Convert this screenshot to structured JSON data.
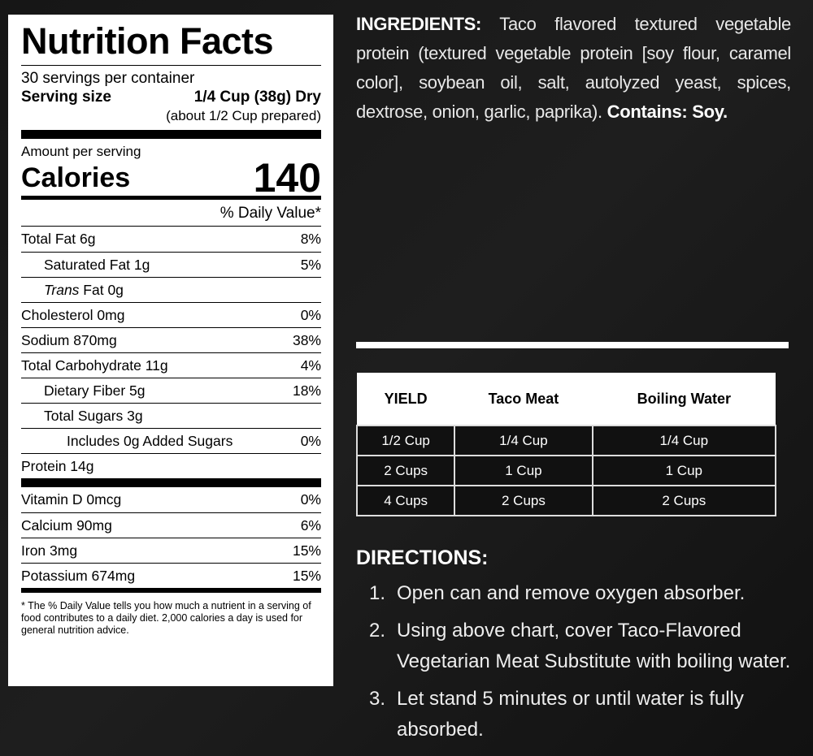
{
  "label": {
    "title": "Nutrition Facts",
    "servings": "30 servings per container",
    "serving_size_label": "Serving size",
    "serving_size_value": "1/4 Cup (38g) Dry",
    "prepared": "(about 1/2 Cup prepared)",
    "amount_per_serving": "Amount per serving",
    "calories_label": "Calories",
    "calories": "140",
    "dv_header": "% Daily Value*",
    "nutrients": [
      {
        "name": "Total Fat 6g",
        "dv": "8%"
      },
      {
        "name": "Saturated Fat 1g",
        "dv": "5%"
      },
      {
        "name": "Trans Fat 0g",
        "dv": ""
      },
      {
        "name": "Cholesterol 0mg",
        "dv": "0%"
      },
      {
        "name": "Sodium 870mg",
        "dv": "38%"
      },
      {
        "name": "Total Carbohydrate 11g",
        "dv": "4%"
      },
      {
        "name": "Dietary Fiber 5g",
        "dv": "18%"
      },
      {
        "name": "Total Sugars 3g",
        "dv": ""
      },
      {
        "name": "Includes 0g Added Sugars",
        "dv": "0%"
      },
      {
        "name": "Protein 14g",
        "dv": ""
      }
    ],
    "vitamins": [
      {
        "name": "Vitamin D 0mcg",
        "dv": "0%"
      },
      {
        "name": "Calcium 90mg",
        "dv": "6%"
      },
      {
        "name": "Iron 3mg",
        "dv": "15%"
      },
      {
        "name": "Potassium 674mg",
        "dv": "15%"
      }
    ],
    "footnote": "* The % Daily Value tells you how much a nutrient in a serving of food contributes to a daily diet. 2,000 calories a day is used for general nutrition advice."
  },
  "ingredients": {
    "label": "INGREDIENTS:",
    "text": "Taco flavored textured vegetable protein (textured vegetable protein [soy flour, caramel color], soybean oil, salt, autolyzed yeast, spices, dextrose, onion, garlic, paprika).",
    "contains": "Contains: Soy."
  },
  "yield_table": {
    "headers": [
      "YIELD",
      "Taco Meat",
      "Boiling Water"
    ],
    "rows": [
      [
        "1/2 Cup",
        "1/4 Cup",
        "1/4 Cup"
      ],
      [
        "2 Cups",
        "1 Cup",
        "1 Cup"
      ],
      [
        "4 Cups",
        "2 Cups",
        "2 Cups"
      ]
    ]
  },
  "directions": {
    "title": "DIRECTIONS:",
    "steps": [
      {
        "n": "1.",
        "text": "Open can and remove oxygen absorber."
      },
      {
        "n": "2.",
        "text": "Using above chart, cover Taco-Flavored Vegetarian Meat Substitute with boiling water."
      },
      {
        "n": "3.",
        "text": "Let stand 5 minutes or until water is fully absorbed."
      }
    ]
  }
}
